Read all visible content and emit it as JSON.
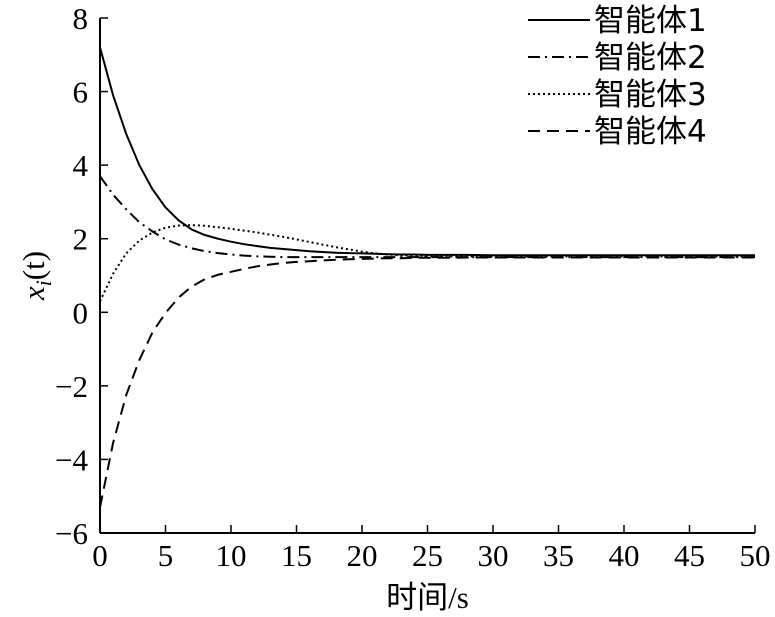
{
  "chart_data": {
    "type": "line",
    "title": "",
    "xlabel": "时间/s",
    "ylabel_base": "x",
    "ylabel_sub": "i",
    "ylabel_suffix": "(t)",
    "xlim": [
      0,
      50
    ],
    "ylim": [
      -6,
      8
    ],
    "x_ticks": [
      0,
      5,
      10,
      15,
      20,
      25,
      30,
      35,
      40,
      45,
      50
    ],
    "x_tick_labels": [
      "0",
      "5",
      "10",
      "15",
      "20",
      "25",
      "30",
      "35",
      "40",
      "45",
      "50"
    ],
    "y_ticks": [
      -6,
      -4,
      -2,
      0,
      2,
      4,
      6,
      8
    ],
    "y_tick_labels": [
      "−6",
      "−4",
      "−2",
      "0",
      "2",
      "4",
      "6",
      "8"
    ],
    "grid": false,
    "legend_position": "top-right",
    "x": [
      0,
      1,
      2,
      3,
      4,
      5,
      6,
      7,
      8,
      9,
      10,
      11,
      12,
      13,
      14,
      15,
      16,
      17,
      18,
      19,
      20,
      21,
      22,
      23,
      24,
      25,
      26,
      27,
      28,
      30,
      32,
      35,
      40,
      45,
      50
    ],
    "series": [
      {
        "name": "智能体1",
        "style": "solid",
        "values": [
          7.2,
          5.9,
          4.85,
          4.0,
          3.35,
          2.85,
          2.5,
          2.25,
          2.1,
          2.0,
          1.92,
          1.85,
          1.8,
          1.75,
          1.72,
          1.69,
          1.66,
          1.64,
          1.62,
          1.61,
          1.6,
          1.59,
          1.58,
          1.57,
          1.57,
          1.56,
          1.56,
          1.56,
          1.56,
          1.55,
          1.55,
          1.55,
          1.55,
          1.55,
          1.55
        ]
      },
      {
        "name": "智能体2",
        "style": "dashdot",
        "values": [
          3.7,
          3.2,
          2.8,
          2.45,
          2.2,
          1.98,
          1.84,
          1.74,
          1.66,
          1.61,
          1.57,
          1.54,
          1.52,
          1.51,
          1.5,
          1.5,
          1.5,
          1.5,
          1.5,
          1.5,
          1.5,
          1.5,
          1.5,
          1.5,
          1.5,
          1.5,
          1.5,
          1.5,
          1.5,
          1.5,
          1.5,
          1.5,
          1.5,
          1.5,
          1.5
        ]
      },
      {
        "name": "智能体3",
        "style": "dotted",
        "values": [
          0.3,
          1.05,
          1.6,
          1.95,
          2.17,
          2.3,
          2.36,
          2.37,
          2.35,
          2.31,
          2.27,
          2.22,
          2.17,
          2.11,
          2.05,
          1.98,
          1.91,
          1.84,
          1.77,
          1.71,
          1.65,
          1.6,
          1.57,
          1.55,
          1.54,
          1.53,
          1.53,
          1.52,
          1.52,
          1.52,
          1.52,
          1.52,
          1.52,
          1.52,
          1.52
        ]
      },
      {
        "name": "智能体4",
        "style": "dashed",
        "values": [
          -5.3,
          -3.55,
          -2.25,
          -1.3,
          -0.55,
          -0.02,
          0.4,
          0.7,
          0.9,
          1.02,
          1.1,
          1.18,
          1.25,
          1.3,
          1.34,
          1.37,
          1.39,
          1.41,
          1.43,
          1.44,
          1.45,
          1.46,
          1.47,
          1.47,
          1.48,
          1.48,
          1.48,
          1.48,
          1.49,
          1.49,
          1.49,
          1.49,
          1.49,
          1.49,
          1.49
        ]
      }
    ]
  }
}
